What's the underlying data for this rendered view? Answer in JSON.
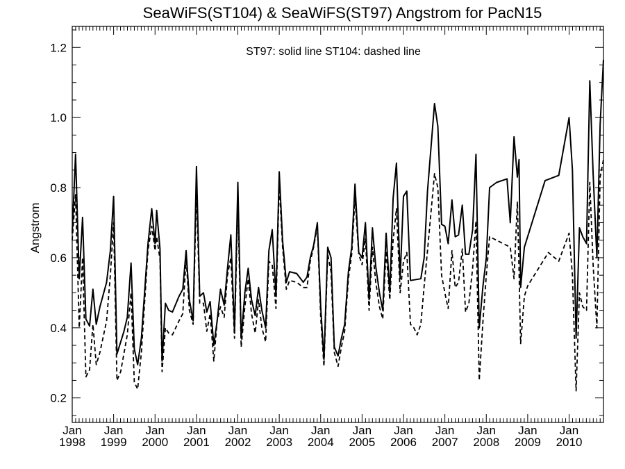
{
  "chart_data": {
    "type": "line",
    "title": "SeaWiFS(ST104) & SeaWiFS(ST97)  Angstrom for PacN15",
    "ylabel": "Angstrom",
    "xlabel": "",
    "annotation": "ST97: solid line   ST104: dashed line",
    "xlim": [
      1998.0,
      2010.83
    ],
    "ylim": [
      0.13,
      1.26
    ],
    "y_ticks": [
      0.2,
      0.4,
      0.6,
      0.8,
      1.0,
      1.2
    ],
    "y_tick_labels": [
      "0.2",
      "0.4",
      "0.6",
      "0.8",
      "1.0",
      "1.2"
    ],
    "x_ticks": [
      {
        "month": "Jan",
        "year": "1998",
        "value": 1998
      },
      {
        "month": "Jan",
        "year": "1999",
        "value": 1999
      },
      {
        "month": "Jan",
        "year": "2000",
        "value": 2000
      },
      {
        "month": "Jan",
        "year": "2001",
        "value": 2001
      },
      {
        "month": "Jan",
        "year": "2002",
        "value": 2002
      },
      {
        "month": "Jan",
        "year": "2003",
        "value": 2003
      },
      {
        "month": "Jan",
        "year": "2004",
        "value": 2004
      },
      {
        "month": "Jan",
        "year": "2005",
        "value": 2005
      },
      {
        "month": "Jan",
        "year": "2006",
        "value": 2006
      },
      {
        "month": "Jan",
        "year": "2007",
        "value": 2007
      },
      {
        "month": "Jan",
        "year": "2008",
        "value": 2008
      },
      {
        "month": "Jan",
        "year": "2009",
        "value": 2009
      },
      {
        "month": "Jan",
        "year": "2010",
        "value": 2010
      }
    ],
    "series": [
      {
        "style": "solid",
        "points": [
          [
            1998.0,
            0.67
          ],
          [
            1998.08,
            0.895
          ],
          [
            1998.17,
            0.54
          ],
          [
            1998.25,
            0.715
          ],
          [
            1998.33,
            0.425
          ],
          [
            1998.42,
            0.405
          ],
          [
            1998.5,
            0.51
          ],
          [
            1998.58,
            0.41
          ],
          [
            1998.67,
            0.46
          ],
          [
            1998.83,
            0.53
          ],
          [
            1998.92,
            0.62
          ],
          [
            1999.0,
            0.775
          ],
          [
            1999.08,
            0.325
          ],
          [
            1999.25,
            0.39
          ],
          [
            1999.33,
            0.43
          ],
          [
            1999.42,
            0.585
          ],
          [
            1999.5,
            0.34
          ],
          [
            1999.58,
            0.295
          ],
          [
            1999.67,
            0.37
          ],
          [
            1999.83,
            0.64
          ],
          [
            1999.92,
            0.74
          ],
          [
            2000.0,
            0.64
          ],
          [
            2000.04,
            0.735
          ],
          [
            2000.12,
            0.625
          ],
          [
            2000.17,
            0.305
          ],
          [
            2000.25,
            0.47
          ],
          [
            2000.33,
            0.45
          ],
          [
            2000.42,
            0.445
          ],
          [
            2000.58,
            0.49
          ],
          [
            2000.67,
            0.51
          ],
          [
            2000.75,
            0.62
          ],
          [
            2000.83,
            0.48
          ],
          [
            2000.92,
            0.42
          ],
          [
            2001.0,
            0.86
          ],
          [
            2001.08,
            0.49
          ],
          [
            2001.17,
            0.5
          ],
          [
            2001.25,
            0.445
          ],
          [
            2001.33,
            0.475
          ],
          [
            2001.42,
            0.35
          ],
          [
            2001.5,
            0.42
          ],
          [
            2001.58,
            0.51
          ],
          [
            2001.67,
            0.465
          ],
          [
            2001.75,
            0.57
          ],
          [
            2001.83,
            0.665
          ],
          [
            2001.92,
            0.39
          ],
          [
            2002.0,
            0.815
          ],
          [
            2002.08,
            0.37
          ],
          [
            2002.17,
            0.5
          ],
          [
            2002.25,
            0.57
          ],
          [
            2002.33,
            0.48
          ],
          [
            2002.42,
            0.435
          ],
          [
            2002.5,
            0.515
          ],
          [
            2002.58,
            0.45
          ],
          [
            2002.67,
            0.4
          ],
          [
            2002.75,
            0.62
          ],
          [
            2002.83,
            0.68
          ],
          [
            2002.92,
            0.49
          ],
          [
            2003.0,
            0.845
          ],
          [
            2003.08,
            0.65
          ],
          [
            2003.17,
            0.53
          ],
          [
            2003.25,
            0.56
          ],
          [
            2003.42,
            0.555
          ],
          [
            2003.58,
            0.53
          ],
          [
            2003.67,
            0.545
          ],
          [
            2003.75,
            0.6
          ],
          [
            2003.83,
            0.635
          ],
          [
            2003.92,
            0.7
          ],
          [
            2004.0,
            0.46
          ],
          [
            2004.08,
            0.31
          ],
          [
            2004.17,
            0.63
          ],
          [
            2004.25,
            0.6
          ],
          [
            2004.33,
            0.345
          ],
          [
            2004.42,
            0.32
          ],
          [
            2004.5,
            0.37
          ],
          [
            2004.58,
            0.41
          ],
          [
            2004.67,
            0.56
          ],
          [
            2004.75,
            0.63
          ],
          [
            2004.83,
            0.81
          ],
          [
            2004.92,
            0.615
          ],
          [
            2005.0,
            0.6
          ],
          [
            2005.08,
            0.7
          ],
          [
            2005.17,
            0.48
          ],
          [
            2005.25,
            0.685
          ],
          [
            2005.33,
            0.575
          ],
          [
            2005.42,
            0.5
          ],
          [
            2005.5,
            0.45
          ],
          [
            2005.58,
            0.67
          ],
          [
            2005.67,
            0.5
          ],
          [
            2005.75,
            0.77
          ],
          [
            2005.83,
            0.87
          ],
          [
            2005.92,
            0.54
          ],
          [
            2006.0,
            0.775
          ],
          [
            2006.08,
            0.79
          ],
          [
            2006.17,
            0.535
          ],
          [
            2006.42,
            0.54
          ],
          [
            2006.5,
            0.6
          ],
          [
            2006.58,
            0.79
          ],
          [
            2006.75,
            1.04
          ],
          [
            2006.83,
            0.975
          ],
          [
            2006.92,
            0.695
          ],
          [
            2007.0,
            0.69
          ],
          [
            2007.08,
            0.64
          ],
          [
            2007.17,
            0.765
          ],
          [
            2007.25,
            0.66
          ],
          [
            2007.33,
            0.665
          ],
          [
            2007.42,
            0.75
          ],
          [
            2007.5,
            0.61
          ],
          [
            2007.58,
            0.61
          ],
          [
            2007.67,
            0.68
          ],
          [
            2007.75,
            0.895
          ],
          [
            2007.83,
            0.4
          ],
          [
            2007.92,
            0.52
          ],
          [
            2008.0,
            0.6
          ],
          [
            2008.08,
            0.8
          ],
          [
            2008.25,
            0.815
          ],
          [
            2008.5,
            0.825
          ],
          [
            2008.58,
            0.7
          ],
          [
            2008.67,
            0.945
          ],
          [
            2008.75,
            0.83
          ],
          [
            2008.79,
            0.88
          ],
          [
            2008.83,
            0.515
          ],
          [
            2008.92,
            0.63
          ],
          [
            2009.42,
            0.82
          ],
          [
            2009.75,
            0.835
          ],
          [
            2010.0,
            1.0
          ],
          [
            2010.08,
            0.85
          ],
          [
            2010.17,
            0.37
          ],
          [
            2010.25,
            0.685
          ],
          [
            2010.33,
            0.66
          ],
          [
            2010.42,
            0.64
          ],
          [
            2010.5,
            1.105
          ],
          [
            2010.58,
            0.84
          ],
          [
            2010.67,
            0.6
          ],
          [
            2010.75,
            0.98
          ],
          [
            2010.83,
            1.165
          ]
        ]
      },
      {
        "style": "dashed",
        "points": [
          [
            1998.0,
            0.65
          ],
          [
            1998.08,
            0.78
          ],
          [
            1998.17,
            0.4
          ],
          [
            1998.25,
            0.6
          ],
          [
            1998.33,
            0.26
          ],
          [
            1998.42,
            0.28
          ],
          [
            1998.5,
            0.41
          ],
          [
            1998.58,
            0.295
          ],
          [
            1998.67,
            0.33
          ],
          [
            1998.83,
            0.42
          ],
          [
            1998.92,
            0.55
          ],
          [
            1999.0,
            0.7
          ],
          [
            1999.08,
            0.25
          ],
          [
            1999.17,
            0.275
          ],
          [
            1999.33,
            0.38
          ],
          [
            1999.42,
            0.5
          ],
          [
            1999.5,
            0.245
          ],
          [
            1999.58,
            0.225
          ],
          [
            1999.67,
            0.33
          ],
          [
            1999.83,
            0.62
          ],
          [
            1999.92,
            0.69
          ],
          [
            2000.0,
            0.62
          ],
          [
            2000.04,
            0.66
          ],
          [
            2000.12,
            0.595
          ],
          [
            2000.17,
            0.275
          ],
          [
            2000.25,
            0.4
          ],
          [
            2000.33,
            0.385
          ],
          [
            2000.42,
            0.38
          ],
          [
            2000.58,
            0.42
          ],
          [
            2000.67,
            0.44
          ],
          [
            2000.75,
            0.6
          ],
          [
            2000.83,
            0.45
          ],
          [
            2000.92,
            0.41
          ],
          [
            2001.0,
            0.79
          ],
          [
            2001.08,
            0.47
          ],
          [
            2001.17,
            0.47
          ],
          [
            2001.25,
            0.39
          ],
          [
            2001.33,
            0.44
          ],
          [
            2001.42,
            0.305
          ],
          [
            2001.5,
            0.42
          ],
          [
            2001.58,
            0.46
          ],
          [
            2001.67,
            0.43
          ],
          [
            2001.75,
            0.55
          ],
          [
            2001.83,
            0.6
          ],
          [
            2001.92,
            0.37
          ],
          [
            2002.0,
            0.76
          ],
          [
            2002.08,
            0.345
          ],
          [
            2002.17,
            0.46
          ],
          [
            2002.25,
            0.54
          ],
          [
            2002.33,
            0.44
          ],
          [
            2002.42,
            0.385
          ],
          [
            2002.5,
            0.48
          ],
          [
            2002.58,
            0.4
          ],
          [
            2002.67,
            0.36
          ],
          [
            2002.75,
            0.59
          ],
          [
            2002.83,
            0.58
          ],
          [
            2002.92,
            0.455
          ],
          [
            2003.0,
            0.81
          ],
          [
            2003.08,
            0.63
          ],
          [
            2003.17,
            0.51
          ],
          [
            2003.25,
            0.535
          ],
          [
            2003.42,
            0.53
          ],
          [
            2003.58,
            0.515
          ],
          [
            2003.67,
            0.515
          ],
          [
            2003.75,
            0.59
          ],
          [
            2003.83,
            0.63
          ],
          [
            2003.92,
            0.69
          ],
          [
            2004.0,
            0.43
          ],
          [
            2004.08,
            0.29
          ],
          [
            2004.17,
            0.61
          ],
          [
            2004.25,
            0.56
          ],
          [
            2004.33,
            0.33
          ],
          [
            2004.42,
            0.29
          ],
          [
            2004.5,
            0.345
          ],
          [
            2004.58,
            0.39
          ],
          [
            2004.67,
            0.54
          ],
          [
            2004.75,
            0.61
          ],
          [
            2004.83,
            0.77
          ],
          [
            2004.92,
            0.61
          ],
          [
            2005.0,
            0.58
          ],
          [
            2005.08,
            0.655
          ],
          [
            2005.17,
            0.45
          ],
          [
            2005.25,
            0.63
          ],
          [
            2005.33,
            0.53
          ],
          [
            2005.42,
            0.46
          ],
          [
            2005.5,
            0.425
          ],
          [
            2005.58,
            0.62
          ],
          [
            2005.67,
            0.48
          ],
          [
            2005.75,
            0.65
          ],
          [
            2005.83,
            0.74
          ],
          [
            2005.92,
            0.5
          ],
          [
            2006.0,
            0.59
          ],
          [
            2006.08,
            0.615
          ],
          [
            2006.17,
            0.41
          ],
          [
            2006.25,
            0.4
          ],
          [
            2006.33,
            0.38
          ],
          [
            2006.42,
            0.41
          ],
          [
            2006.5,
            0.52
          ],
          [
            2006.58,
            0.62
          ],
          [
            2006.75,
            0.84
          ],
          [
            2006.83,
            0.8
          ],
          [
            2006.92,
            0.55
          ],
          [
            2007.0,
            0.5
          ],
          [
            2007.08,
            0.455
          ],
          [
            2007.17,
            0.62
          ],
          [
            2007.25,
            0.515
          ],
          [
            2007.33,
            0.53
          ],
          [
            2007.42,
            0.625
          ],
          [
            2007.5,
            0.445
          ],
          [
            2007.58,
            0.47
          ],
          [
            2007.67,
            0.57
          ],
          [
            2007.75,
            0.705
          ],
          [
            2007.83,
            0.25
          ],
          [
            2007.92,
            0.42
          ],
          [
            2008.0,
            0.55
          ],
          [
            2008.08,
            0.66
          ],
          [
            2008.58,
            0.63
          ],
          [
            2008.67,
            0.54
          ],
          [
            2008.75,
            0.76
          ],
          [
            2008.79,
            0.565
          ],
          [
            2008.83,
            0.355
          ],
          [
            2008.92,
            0.49
          ],
          [
            2009.0,
            0.52
          ],
          [
            2009.5,
            0.615
          ],
          [
            2009.75,
            0.59
          ],
          [
            2010.0,
            0.67
          ],
          [
            2010.08,
            0.55
          ],
          [
            2010.17,
            0.22
          ],
          [
            2010.25,
            0.5
          ],
          [
            2010.33,
            0.46
          ],
          [
            2010.42,
            0.45
          ],
          [
            2010.5,
            0.815
          ],
          [
            2010.58,
            0.58
          ],
          [
            2010.67,
            0.4
          ],
          [
            2010.75,
            0.83
          ],
          [
            2010.83,
            0.88
          ]
        ]
      }
    ]
  }
}
